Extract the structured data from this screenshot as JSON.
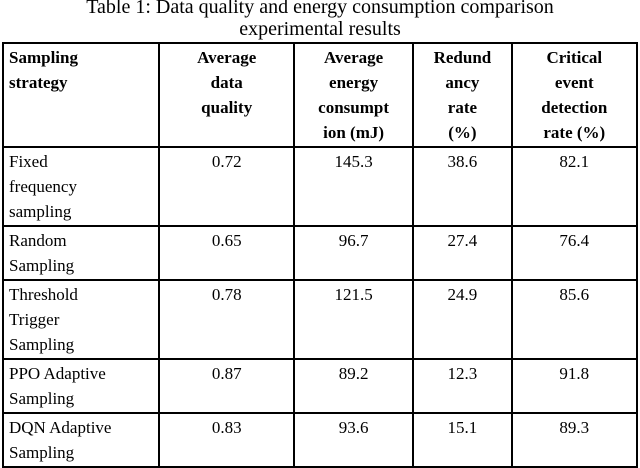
{
  "caption": {
    "line1": "Table 1:  Data quality and energy consumption comparison",
    "line2": "experimental results"
  },
  "table": {
    "headers": [
      "Sampling\nstrategy",
      "Average\ndata\nquality",
      "Average\nenergy\nconsumpt\nion (mJ)",
      "Redund\nancy\nrate\n(%)",
      "Critical\nevent\ndetection\nrate (%)"
    ],
    "rows": [
      {
        "strategy": "Fixed\nfrequency\nsampling",
        "quality": "0.72",
        "energy": "145.3",
        "redundancy": "38.6",
        "detection": "82.1"
      },
      {
        "strategy": "Random\nSampling",
        "quality": "0.65",
        "energy": "96.7",
        "redundancy": "27.4",
        "detection": "76.4"
      },
      {
        "strategy": "Threshold\nTrigger\nSampling",
        "quality": "0.78",
        "energy": "121.5",
        "redundancy": "24.9",
        "detection": "85.6"
      },
      {
        "strategy": "PPO Adaptive\nSampling",
        "quality": "0.87",
        "energy": "89.2",
        "redundancy": "12.3",
        "detection": "91.8"
      },
      {
        "strategy": "DQN Adaptive\nSampling",
        "quality": "0.83",
        "energy": "93.6",
        "redundancy": "15.1",
        "detection": "89.3"
      }
    ]
  }
}
